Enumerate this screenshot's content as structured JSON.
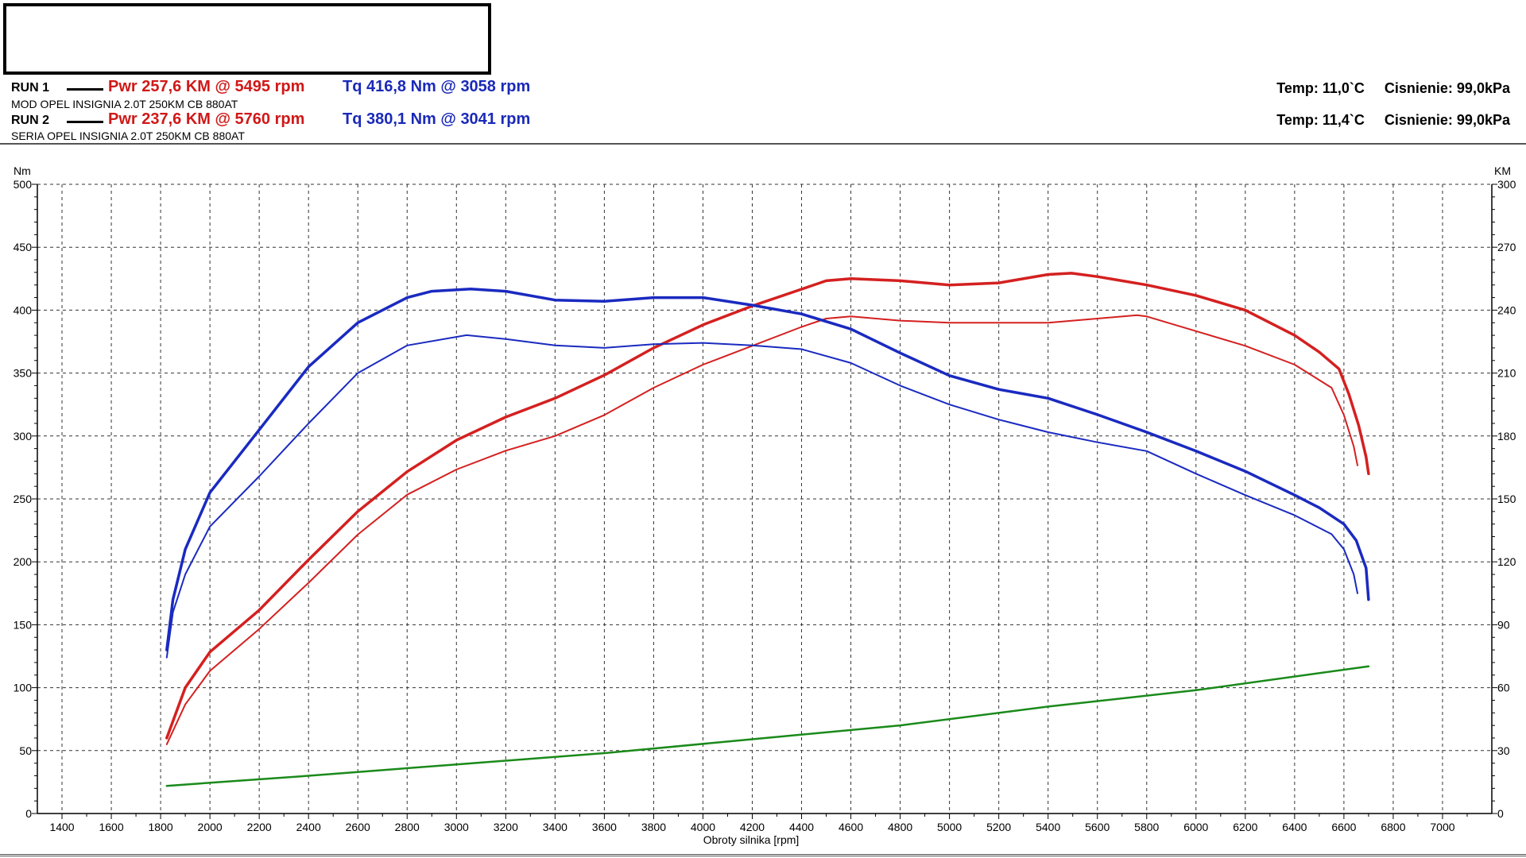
{
  "header": {
    "runs": [
      {
        "label": "RUN 1",
        "power": "Pwr  257,6 KM @ 5495 rpm",
        "torque": "Tq 416,8 Nm @ 3058 rpm",
        "description": "MOD OPEL INSIGNIA 2.0T 250KM CB 880AT",
        "temp": "Temp: 11,0`C",
        "pressure": "Cisnienie: 99,0kPa"
      },
      {
        "label": "RUN 2",
        "power": "Pwr  237,6 KM @ 5760 rpm",
        "torque": "Tq 380,1 Nm @ 3041 rpm",
        "description": "SERIA OPEL INSIGNIA 2.0T 250KM CB 880AT",
        "temp": "Temp: 11,4`C",
        "pressure": "Cisnienie: 99,0kPa"
      }
    ]
  },
  "chart_data": {
    "type": "line",
    "xlabel": "Obroty silnika [rpm]",
    "ylabel_left": "Nm",
    "ylabel_right": "KM",
    "xlim": [
      1300,
      7200
    ],
    "ylim_left": [
      0,
      500
    ],
    "ylim_right": [
      0,
      300
    ],
    "x_ticks": [
      1400,
      1600,
      1800,
      2000,
      2200,
      2400,
      2600,
      2800,
      3000,
      3200,
      3400,
      3600,
      3800,
      4000,
      4200,
      4400,
      4600,
      4800,
      5000,
      5200,
      5400,
      5600,
      5800,
      6000,
      6200,
      6400,
      6600,
      6800,
      7000
    ],
    "y_ticks_left": [
      0,
      50,
      100,
      150,
      200,
      250,
      300,
      350,
      400,
      450,
      500
    ],
    "y_ticks_right": [
      0,
      30,
      60,
      90,
      120,
      150,
      180,
      210,
      240,
      270,
      300
    ],
    "grid": true,
    "colors": {
      "power": "#d42020",
      "torque": "#1a2ac0",
      "loss": "#1a8a1a"
    },
    "series": [
      {
        "run": 1,
        "quantity": "power",
        "axis": "right",
        "width": 3.5,
        "x": [
          1825,
          1900,
          2000,
          2200,
          2400,
          2600,
          2800,
          3000,
          3200,
          3400,
          3600,
          3800,
          4000,
          4200,
          4400,
          4500,
          4600,
          4800,
          5000,
          5200,
          5400,
          5495,
          5600,
          5800,
          6000,
          6200,
          6400,
          6500,
          6580,
          6620,
          6660,
          6690,
          6700
        ],
        "y": [
          36,
          60,
          77,
          97,
          121,
          144,
          163,
          178,
          189,
          198,
          209,
          222,
          233,
          242,
          250,
          254,
          255,
          254,
          252,
          253,
          257,
          257.6,
          256,
          252,
          247,
          240,
          228,
          220,
          212,
          200,
          185,
          170,
          162
        ]
      },
      {
        "run": 2,
        "quantity": "power",
        "axis": "right",
        "width": 2,
        "x": [
          1825,
          1900,
          2000,
          2200,
          2400,
          2600,
          2800,
          3000,
          3200,
          3400,
          3600,
          3800,
          4000,
          4200,
          4400,
          4500,
          4600,
          4800,
          5000,
          5200,
          5400,
          5600,
          5760,
          5800,
          6000,
          6200,
          6400,
          6550,
          6600,
          6640,
          6655
        ],
        "y": [
          33,
          52,
          68,
          88,
          110,
          133,
          152,
          164,
          173,
          180,
          190,
          203,
          214,
          223,
          232,
          236,
          237,
          235,
          234,
          234,
          234,
          236,
          237.6,
          237,
          230,
          223,
          214,
          203,
          190,
          175,
          166
        ]
      },
      {
        "run": 1,
        "quantity": "torque",
        "axis": "left",
        "width": 3.5,
        "x": [
          1825,
          1850,
          1900,
          2000,
          2200,
          2400,
          2600,
          2800,
          2900,
          3058,
          3200,
          3400,
          3600,
          3800,
          4000,
          4200,
          4400,
          4600,
          4800,
          5000,
          5200,
          5400,
          5600,
          5800,
          6000,
          6200,
          6400,
          6500,
          6600,
          6650,
          6690,
          6700
        ],
        "y": [
          130,
          170,
          210,
          255,
          305,
          355,
          390,
          410,
          415,
          416.8,
          415,
          408,
          407,
          410,
          410,
          404,
          397,
          385,
          366,
          348,
          337,
          330,
          317,
          303,
          288,
          272,
          253,
          243,
          230,
          217,
          195,
          170
        ]
      },
      {
        "run": 2,
        "quantity": "torque",
        "axis": "left",
        "width": 2,
        "x": [
          1825,
          1850,
          1900,
          2000,
          2200,
          2400,
          2600,
          2800,
          3041,
          3200,
          3400,
          3600,
          3800,
          4000,
          4200,
          4400,
          4600,
          4800,
          5000,
          5200,
          5400,
          5600,
          5800,
          6000,
          6200,
          6400,
          6550,
          6600,
          6640,
          6655
        ],
        "y": [
          124,
          160,
          190,
          228,
          268,
          310,
          350,
          372,
          380.1,
          377,
          372,
          370,
          373,
          374,
          372,
          369,
          358,
          340,
          325,
          313,
          303,
          295,
          288,
          270,
          253,
          237,
          222,
          210,
          190,
          175
        ]
      },
      {
        "run": 1,
        "quantity": "loss",
        "axis": "left",
        "width": 2.5,
        "x": [
          1825,
          2400,
          3000,
          3600,
          4200,
          4800,
          5400,
          6000,
          6700
        ],
        "y": [
          22,
          30,
          39,
          48,
          59,
          70,
          85,
          98,
          117
        ]
      }
    ]
  }
}
